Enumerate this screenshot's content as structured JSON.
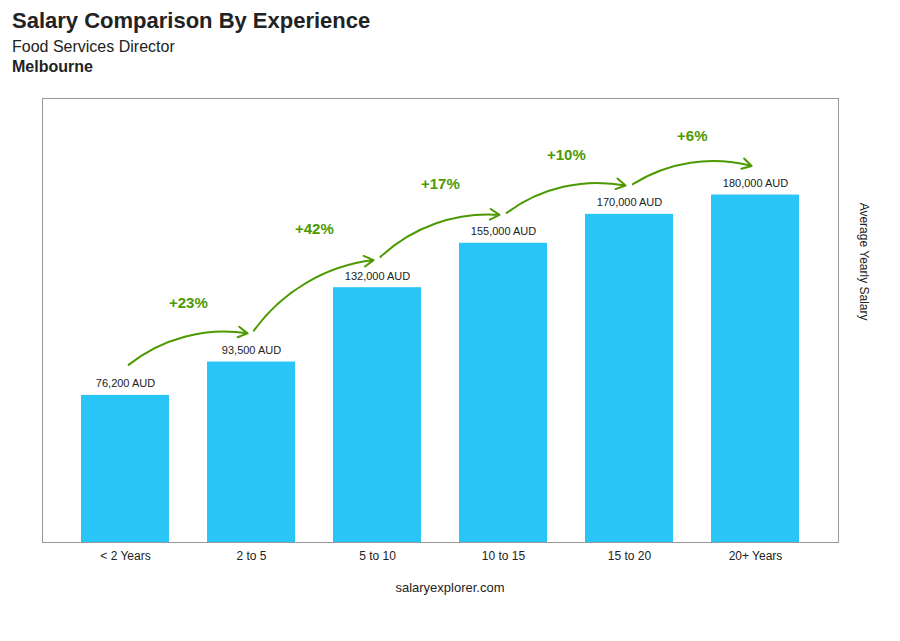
{
  "chart_data": {
    "type": "bar",
    "title": "Salary Comparison By Experience",
    "subtitle": [
      "Food Services Director",
      "Melbourne"
    ],
    "ylabel": "Average Yearly Salary",
    "categories": [
      "< 2 Years",
      "2 to 5",
      "5 to 10",
      "10 to 15",
      "15 to 20",
      "20+ Years"
    ],
    "values": [
      76200,
      93500,
      132000,
      155000,
      170000,
      180000
    ],
    "value_labels": [
      "76,200 AUD",
      "93,500 AUD",
      "132,000 AUD",
      "155,000 AUD",
      "170,000 AUD",
      "180,000 AUD"
    ],
    "data_labels": true,
    "pct_changes": [
      null,
      23,
      42,
      17,
      10,
      6
    ],
    "pct_change_labels": [
      null,
      "+23%",
      "+42%",
      "+17%",
      "+10%",
      "+6%"
    ],
    "color": "#29C5F6",
    "ylim": [
      0,
      230000
    ],
    "tick_labels": "x",
    "grid": false,
    "annotations": [
      "salaryexplorer.com"
    ]
  }
}
